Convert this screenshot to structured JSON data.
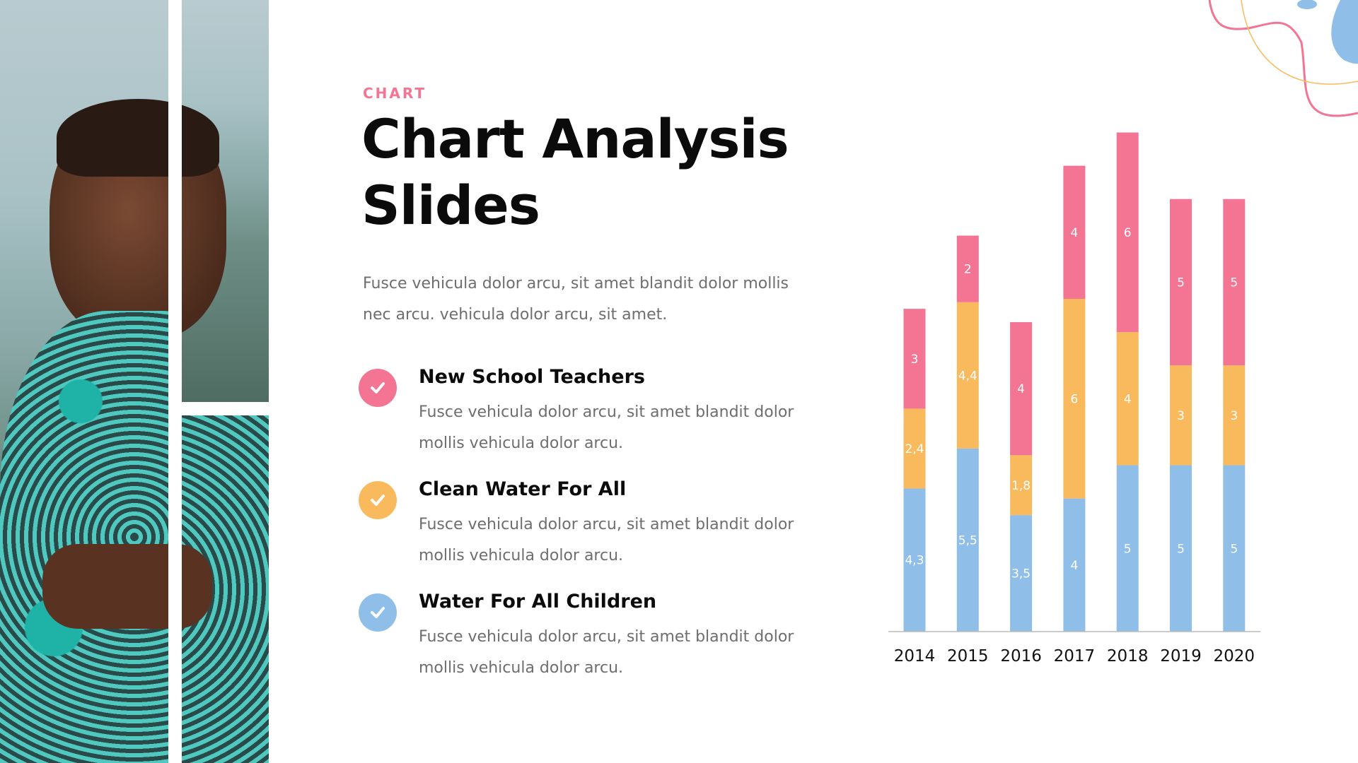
{
  "header": {
    "eyebrow": "CHART",
    "title_line1": "Chart Analysis",
    "title_line2": "Slides",
    "lead": "Fusce vehicula dolor arcu, sit amet blandit dolor mollis nec arcu. vehicula dolor arcu, sit amet."
  },
  "items": [
    {
      "title": "New School Teachers",
      "text": "Fusce vehicula dolor arcu, sit amet blandit dolor mollis vehicula dolor arcu.",
      "color": "#f37493",
      "icon": "check-icon"
    },
    {
      "title": "Clean Water For All",
      "text": "Fusce vehicula dolor arcu, sit amet blandit dolor mollis vehicula dolor arcu.",
      "color": "#f9ba5e",
      "icon": "check-icon"
    },
    {
      "title": "Water For All Children",
      "text": "Fusce vehicula dolor arcu, sit amet blandit dolor mollis vehicula dolor arcu.",
      "color": "#8fbfe8",
      "icon": "check-icon"
    }
  ],
  "chart_data": {
    "type": "bar",
    "stacked": true,
    "categories": [
      "2014",
      "2015",
      "2016",
      "2017",
      "2018",
      "2019",
      "2020"
    ],
    "series": [
      {
        "values": [
          4.3,
          5.5,
          3.5,
          4,
          5,
          5,
          5
        ],
        "labels": [
          "4,3",
          "5,5",
          "3,5",
          "4",
          "5",
          "5",
          "5"
        ],
        "color": "#8fbfe8"
      },
      {
        "values": [
          2.4,
          4.4,
          1.8,
          6,
          4,
          3,
          3
        ],
        "labels": [
          "2,4",
          "4,4",
          "1,8",
          "6",
          "4",
          "3",
          "3"
        ],
        "color": "#f9ba5e"
      },
      {
        "values": [
          3,
          2,
          4,
          4,
          6,
          5,
          5
        ],
        "labels": [
          "3",
          "2",
          "4",
          "4",
          "6",
          "5",
          "5"
        ],
        "color": "#f37493"
      }
    ],
    "ylim": [
      0,
      15
    ],
    "grid": false,
    "legend": "none",
    "xlabel": "",
    "ylabel": ""
  }
}
